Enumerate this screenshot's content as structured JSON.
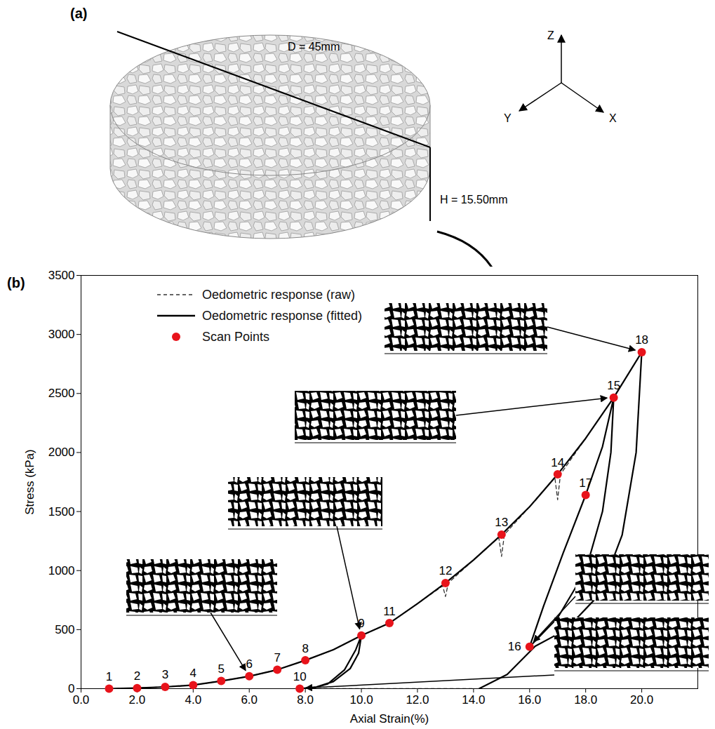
{
  "panel_a": {
    "label": "(a)",
    "diameter_label": "D = 45mm",
    "height_label": "H = 15.50mm",
    "axes": [
      "Z",
      "X",
      "Y"
    ]
  },
  "chart_data": {
    "panel_label": "(b)",
    "type": "line",
    "xlabel": "Axial Strain(%)",
    "ylabel": "Stress (kPa)",
    "xlim": [
      0,
      22
    ],
    "xticks": [
      {
        "value": 0,
        "label": "0.0"
      },
      {
        "value": 2,
        "label": "2.0"
      },
      {
        "value": 4,
        "label": "4.0"
      },
      {
        "value": 6,
        "label": "6.0"
      },
      {
        "value": 8,
        "label": "8.0"
      },
      {
        "value": 10,
        "label": "10.0"
      },
      {
        "value": 12,
        "label": "12.0"
      },
      {
        "value": 14,
        "label": "14.0"
      },
      {
        "value": 16,
        "label": "16.0"
      },
      {
        "value": 18,
        "label": "18.0"
      },
      {
        "value": 20,
        "label": "20.0"
      }
    ],
    "ylim": [
      0,
      3500
    ],
    "yticks": [
      0,
      500,
      1000,
      1500,
      2000,
      2500,
      3000,
      3500
    ],
    "grid": false,
    "legend": "upper left",
    "series": [
      {
        "name": "Oedometric response (raw)",
        "type": "line",
        "color": "#333333",
        "line_style": "dashed",
        "x": [
          1,
          2,
          3,
          4,
          5,
          6,
          7,
          8,
          9,
          10,
          11,
          12,
          12.9,
          13,
          13.1,
          14,
          14.9,
          15,
          15.1,
          16,
          16.9,
          17,
          17.1,
          18,
          19,
          20,
          20.5,
          8.2,
          14
        ],
        "values": [
          0,
          5,
          15,
          30,
          65,
          105,
          160,
          240,
          330,
          450,
          555,
          720,
          870,
          780,
          895,
          1090,
          1280,
          1120,
          1305,
          1540,
          1790,
          1600,
          1815,
          2120,
          2465,
          2850,
          null,
          0,
          0
        ]
      },
      {
        "name": "Oedometric response (fitted)",
        "type": "line",
        "color": "#000000",
        "line_style": "solid",
        "x": [
          1,
          2,
          3,
          4,
          5,
          6,
          7,
          8,
          9,
          10,
          9.9,
          9.6,
          9,
          8.4,
          7.8,
          8.2,
          8.8,
          9.4,
          9.8,
          10,
          11,
          12,
          13,
          14,
          15,
          16,
          17,
          18,
          19,
          18.9,
          18.6,
          18,
          17,
          16,
          16.5,
          17.2,
          18,
          18.6,
          19,
          20,
          19.8,
          19.3,
          18.5,
          17.3,
          16.2,
          15.2,
          14.2
        ],
        "values": [
          0,
          5,
          15,
          30,
          65,
          105,
          160,
          240,
          330,
          450,
          300,
          170,
          60,
          15,
          0,
          0,
          40,
          160,
          330,
          450,
          555,
          720,
          895,
          1090,
          1305,
          1540,
          1815,
          2120,
          2465,
          2000,
          1500,
          1000,
          600,
          355,
          700,
          1150,
          1640,
          2050,
          2465,
          2850,
          2000,
          1300,
          800,
          500,
          360,
          120,
          0
        ]
      },
      {
        "name": "Scan Points",
        "type": "scatter",
        "color": "#e8131b",
        "marker": "circle",
        "x": [
          1,
          2,
          3,
          4,
          5,
          6,
          7,
          8,
          10,
          7.8,
          11,
          13,
          15,
          17,
          19,
          16,
          18,
          20
        ],
        "values": [
          0,
          5,
          15,
          30,
          65,
          105,
          160,
          240,
          450,
          0,
          555,
          895,
          1305,
          1815,
          2465,
          355,
          1640,
          2850
        ],
        "point_labels": [
          "1",
          "2",
          "3",
          "4",
          "5",
          "6",
          "7",
          "8",
          "9",
          "10",
          "11",
          "12",
          "13",
          "14",
          "15",
          "16",
          "17",
          "18"
        ]
      }
    ]
  }
}
